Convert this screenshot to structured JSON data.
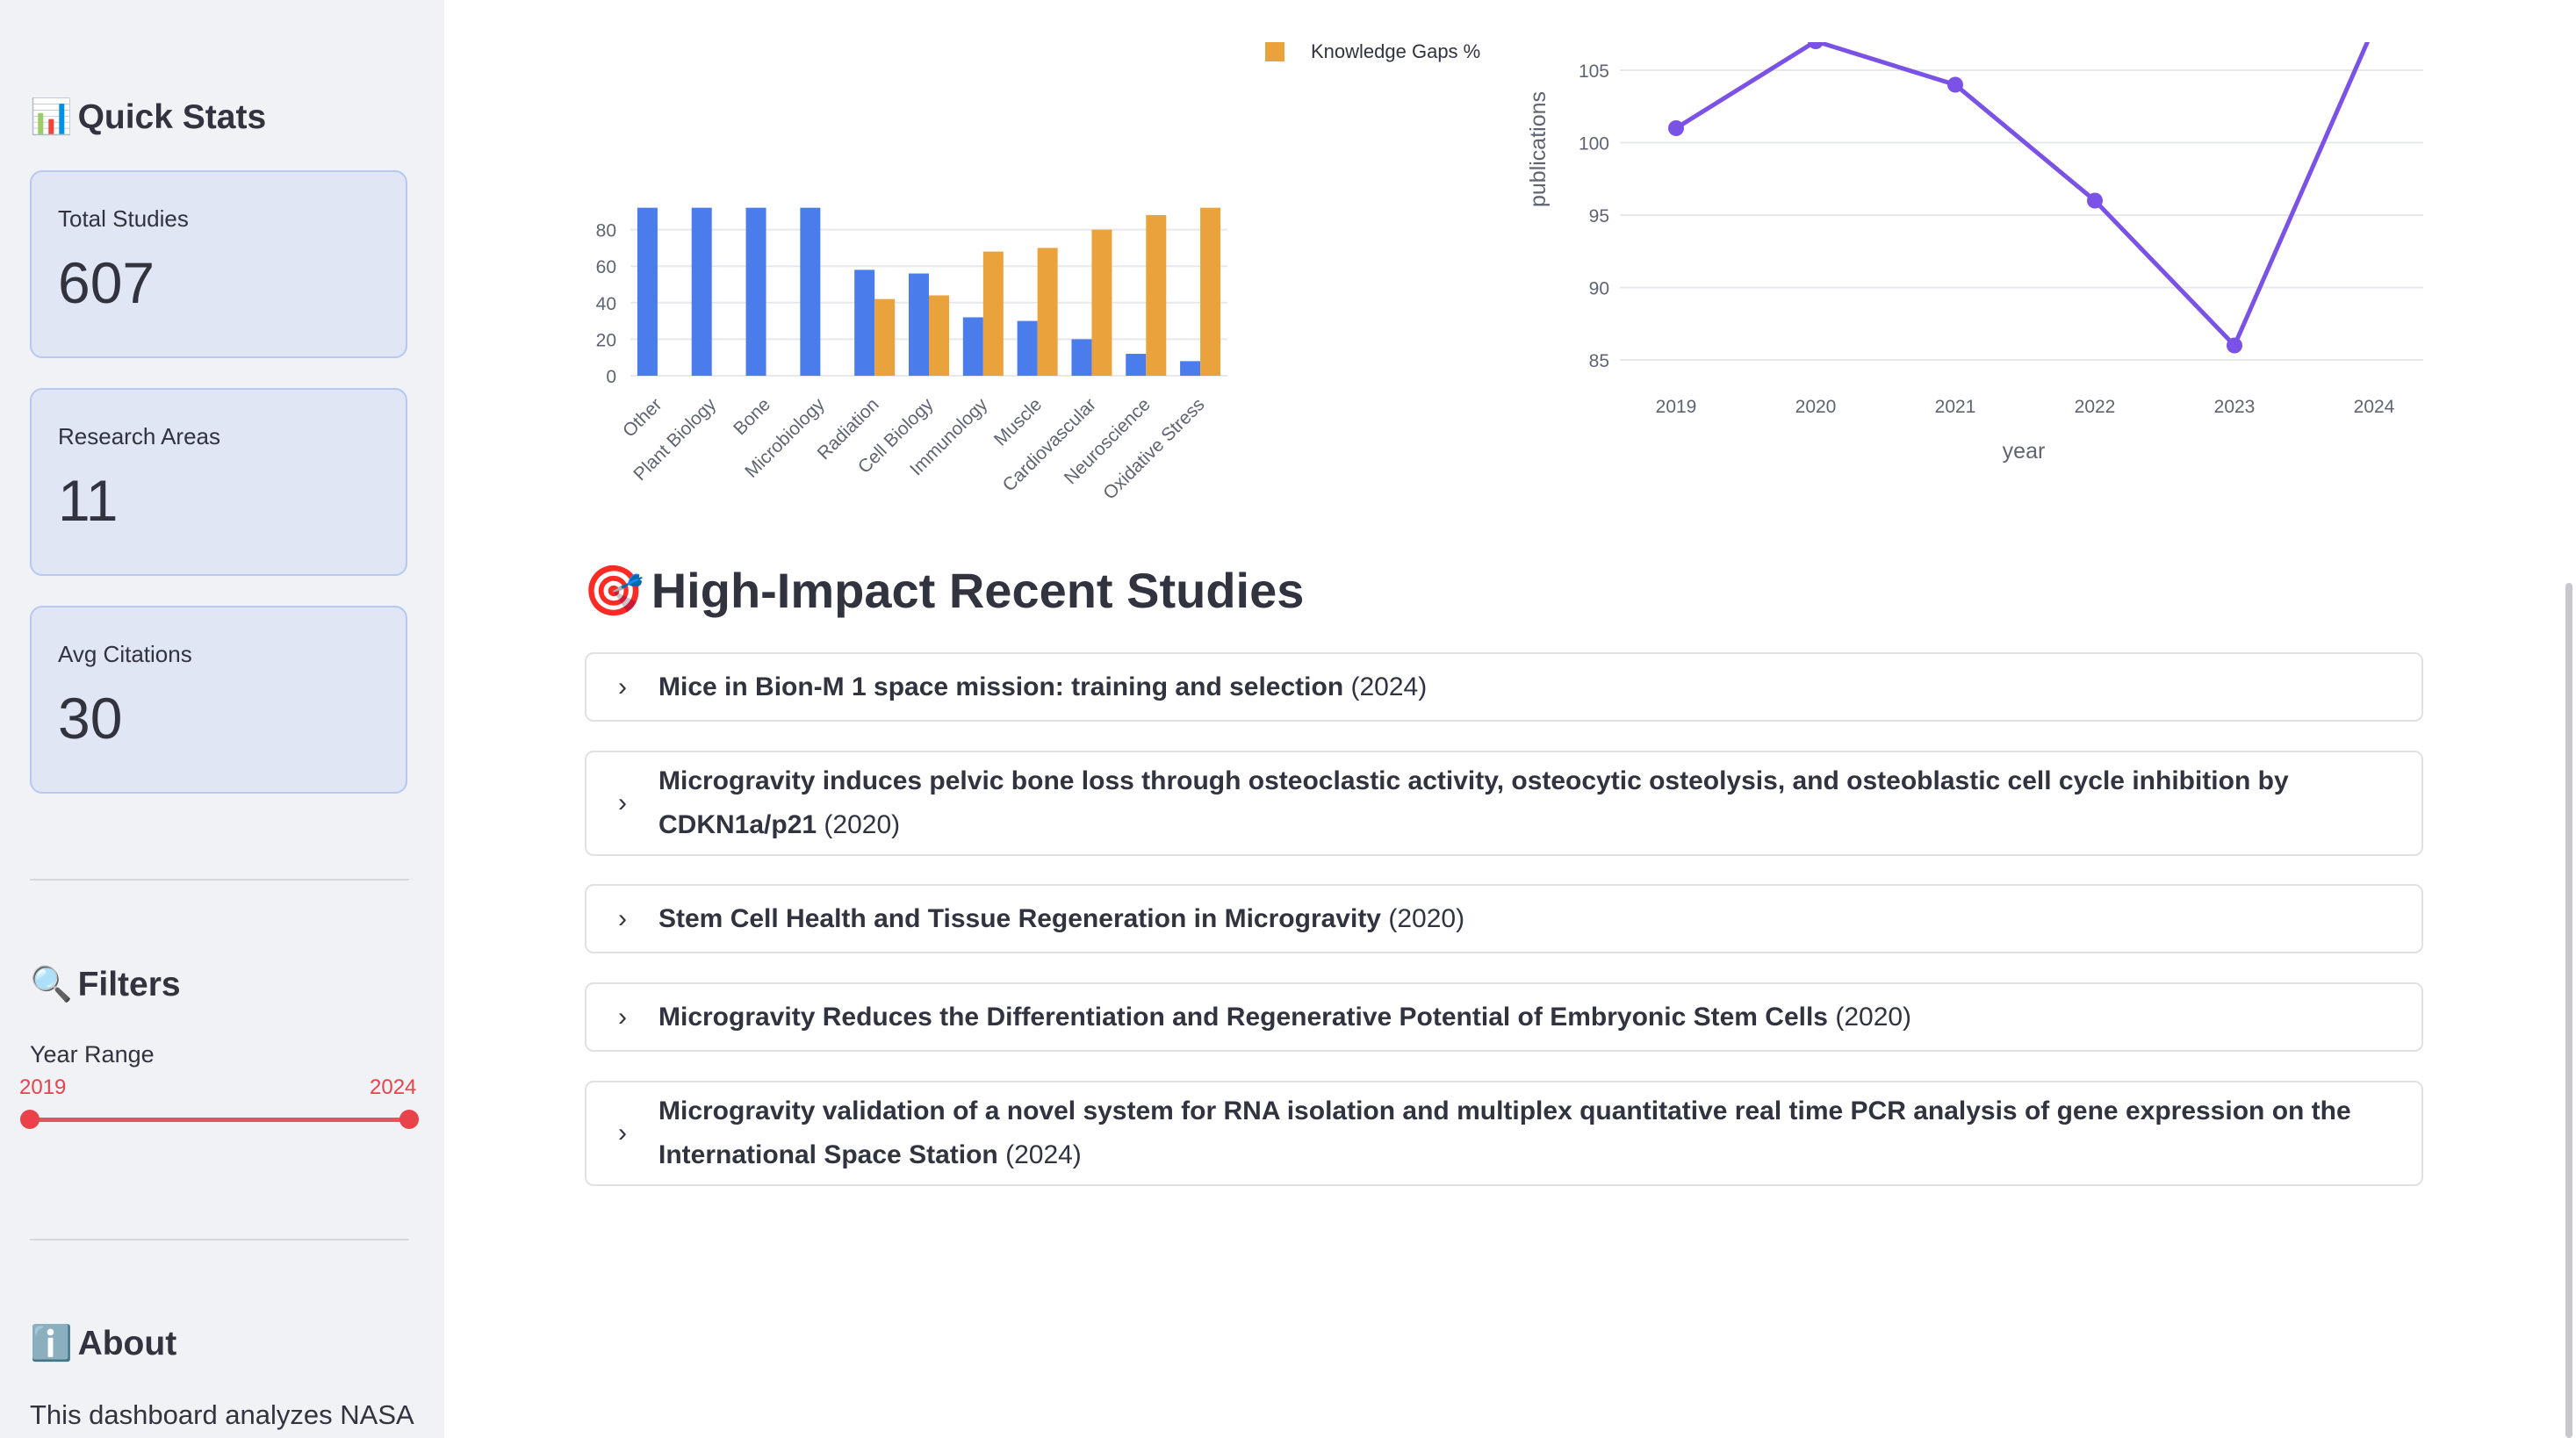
{
  "sidebar": {
    "quick_stats_emoji": "📊",
    "quick_stats_title": "Quick Stats",
    "metrics": [
      {
        "label": "Total Studies",
        "value": "607"
      },
      {
        "label": "Research Areas",
        "value": "11"
      },
      {
        "label": "Avg Citations",
        "value": "30"
      }
    ],
    "filters_emoji": "🔍",
    "filters_title": "Filters",
    "year_range": {
      "label": "Year Range",
      "min": "2019",
      "max": "2024"
    },
    "about_emoji": "ℹ️",
    "about_title": "About",
    "about_text": "This dashboard analyzes NASA"
  },
  "main": {
    "section_emoji": "🎯",
    "section_title": "High-Impact Recent Studies",
    "studies": [
      {
        "title": "Mice in Bion-M 1 space mission: training and selection",
        "year": "(2024)"
      },
      {
        "title": "Microgravity induces pelvic bone loss through osteoclastic activity, osteocytic osteolysis, and osteoblastic cell cycle inhibition by CDKN1a/p21",
        "year": "(2020)"
      },
      {
        "title": "Stem Cell Health and Tissue Regeneration in Microgravity",
        "year": "(2020)"
      },
      {
        "title": "Microgravity Reduces the Differentiation and Regenerative Potential of Embryonic Stem Cells",
        "year": "(2020)"
      },
      {
        "title": "Microgravity validation of a novel system for RNA isolation and multiplex quantitative real time PCR analysis of gene expression on the International Space Station",
        "year": "(2024)"
      }
    ]
  },
  "chart_data": [
    {
      "type": "bar",
      "categories": [
        "Other",
        "Plant Biology",
        "Bone",
        "Microbiology",
        "Radiation",
        "Cell Biology",
        "Immunology",
        "Muscle",
        "Cardiovascular",
        "Neuroscience",
        "Oxidative Stress"
      ],
      "series": [
        {
          "name": "",
          "color": "#4a7cec",
          "values": [
            92,
            92,
            92,
            92,
            58,
            56,
            32,
            30,
            20,
            12,
            8
          ]
        },
        {
          "name": "Knowledge Gaps %",
          "color": "#eaa23c",
          "values": [
            0,
            0,
            0,
            0,
            42,
            44,
            68,
            70,
            80,
            88,
            92
          ]
        }
      ],
      "yticks": [
        0,
        20,
        40,
        60,
        80
      ],
      "ylim": [
        0,
        92
      ],
      "legend": "top-right",
      "grid": true
    },
    {
      "type": "line",
      "x": [
        2019,
        2020,
        2021,
        2022,
        2023,
        2024
      ],
      "series": [
        {
          "name": "",
          "color": "#7b52e6",
          "values": [
            101,
            107,
            104,
            96,
            86,
            108
          ]
        }
      ],
      "xlabel": "year",
      "ylabel": "publications",
      "yticks": [
        85,
        90,
        95,
        100,
        105
      ],
      "ylim": [
        83,
        108
      ],
      "grid": true
    }
  ]
}
